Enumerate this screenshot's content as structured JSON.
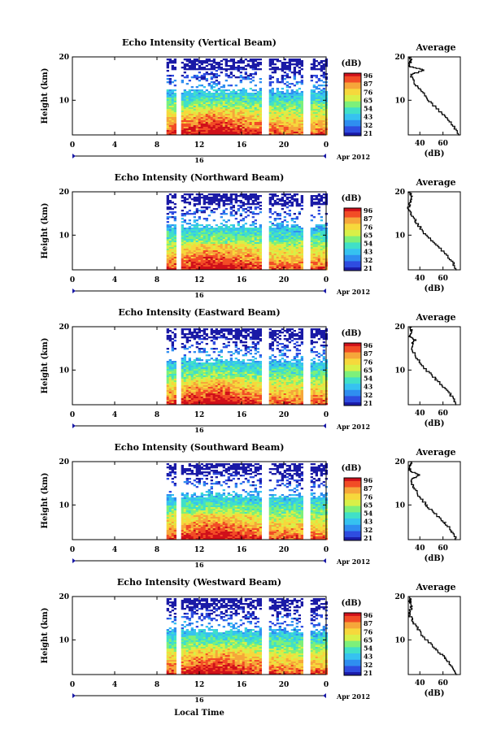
{
  "figure": {
    "date_label": "Apr 2012",
    "day_label": "16",
    "xlabel_bottom": "Local Time",
    "colorbar_unit": "(dB)",
    "colorbar_ticks": [
      "96",
      "87",
      "76",
      "65",
      "54",
      "43",
      "32",
      "21"
    ],
    "avg_title": "Average",
    "avg_xlabel": "(dB)",
    "avg_xticks": [
      "40",
      "60"
    ],
    "colors": {
      "scale": [
        "#1a1aa6",
        "#2f4de0",
        "#2f8ef0",
        "#36c2f0",
        "#40e0c8",
        "#7df07a",
        "#d8f048",
        "#f6d83c",
        "#f6a63a",
        "#f24c26",
        "#d0101a"
      ]
    }
  },
  "chart_data": [
    {
      "type": "heatmap",
      "title": "Echo Intensity (Vertical Beam)",
      "xlabel": "",
      "ylabel": "Height (km)",
      "xticks": [
        "0",
        "4",
        "8",
        "12",
        "16",
        "20",
        "0"
      ],
      "xlim": [
        0,
        24
      ],
      "yticks": [
        "20",
        "10"
      ],
      "ylim": [
        2,
        20
      ],
      "gaps_hours": [
        [
          9.6,
          10.1
        ],
        [
          17.8,
          18.4
        ],
        [
          21.8,
          22.3
        ]
      ],
      "data_start_hour": 8.9,
      "average_profile": {
        "xlim": [
          30,
          75
        ],
        "height_km": [
          2,
          4,
          6,
          8,
          10,
          12,
          14,
          16,
          17,
          18,
          19,
          20
        ],
        "db": [
          74,
          70,
          63,
          56,
          48,
          42,
          36,
          32,
          44,
          30,
          32,
          32
        ]
      }
    },
    {
      "type": "heatmap",
      "title": "Echo Intensity (Northward Beam)",
      "xlabel": "",
      "ylabel": "Height (km)",
      "xticks": [
        "0",
        "4",
        "8",
        "12",
        "16",
        "20",
        "0"
      ],
      "xlim": [
        0,
        24
      ],
      "yticks": [
        "20",
        "10"
      ],
      "ylim": [
        2,
        20
      ],
      "gaps_hours": [
        [
          9.6,
          10.1
        ],
        [
          17.8,
          18.4
        ],
        [
          21.8,
          22.3
        ]
      ],
      "data_start_hour": 8.9,
      "average_profile": {
        "xlim": [
          30,
          75
        ],
        "height_km": [
          2,
          4,
          6,
          8,
          10,
          12,
          14,
          16,
          17,
          18,
          19,
          20
        ],
        "db": [
          72,
          68,
          62,
          54,
          46,
          40,
          35,
          30,
          31,
          32,
          33,
          31
        ]
      }
    },
    {
      "type": "heatmap",
      "title": "Echo Intensity (Eastward Beam)",
      "xlabel": "",
      "ylabel": "Height (km)",
      "xticks": [
        "0",
        "4",
        "8",
        "12",
        "16",
        "20",
        "0"
      ],
      "xlim": [
        0,
        24
      ],
      "yticks": [
        "20",
        "10"
      ],
      "ylim": [
        2,
        20
      ],
      "gaps_hours": [
        [
          9.6,
          10.1
        ],
        [
          17.8,
          18.4
        ],
        [
          21.8,
          22.3
        ]
      ],
      "data_start_hour": 8.9,
      "average_profile": {
        "xlim": [
          30,
          75
        ],
        "height_km": [
          2,
          4,
          6,
          8,
          10,
          12,
          14,
          16,
          17,
          18,
          19,
          20
        ],
        "db": [
          72,
          68,
          62,
          54,
          46,
          40,
          35,
          33,
          36,
          31,
          33,
          32
        ]
      }
    },
    {
      "type": "heatmap",
      "title": "Echo Intensity (Southward Beam)",
      "xlabel": "",
      "ylabel": "Height (km)",
      "xticks": [
        "0",
        "4",
        "8",
        "12",
        "16",
        "20",
        "0"
      ],
      "xlim": [
        0,
        24
      ],
      "yticks": [
        "20",
        "10"
      ],
      "ylim": [
        2,
        20
      ],
      "gaps_hours": [
        [
          9.6,
          10.1
        ],
        [
          17.8,
          18.4
        ],
        [
          21.8,
          22.3
        ]
      ],
      "data_start_hour": 8.9,
      "average_profile": {
        "xlim": [
          30,
          75
        ],
        "height_km": [
          2,
          4,
          6,
          8,
          10,
          12,
          14,
          16,
          17,
          18,
          19,
          20
        ],
        "db": [
          72,
          68,
          62,
          54,
          46,
          40,
          35,
          32,
          40,
          31,
          32,
          32
        ]
      }
    },
    {
      "type": "heatmap",
      "title": "Echo Intensity (Westward Beam)",
      "xlabel": "",
      "ylabel": "Height (km)",
      "xticks": [
        "0",
        "4",
        "8",
        "12",
        "16",
        "20",
        "0"
      ],
      "xlim": [
        0,
        24
      ],
      "yticks": [
        "20",
        "10"
      ],
      "ylim": [
        2,
        20
      ],
      "gaps_hours": [
        [
          9.6,
          10.1
        ],
        [
          17.8,
          18.4
        ],
        [
          21.8,
          22.3
        ]
      ],
      "data_start_hour": 8.9,
      "average_profile": {
        "xlim": [
          30,
          75
        ],
        "height_km": [
          2,
          4,
          6,
          8,
          10,
          12,
          14,
          16,
          17,
          18,
          19,
          20
        ],
        "db": [
          72,
          68,
          62,
          54,
          46,
          40,
          35,
          31,
          32,
          33,
          31,
          32
        ]
      }
    }
  ]
}
